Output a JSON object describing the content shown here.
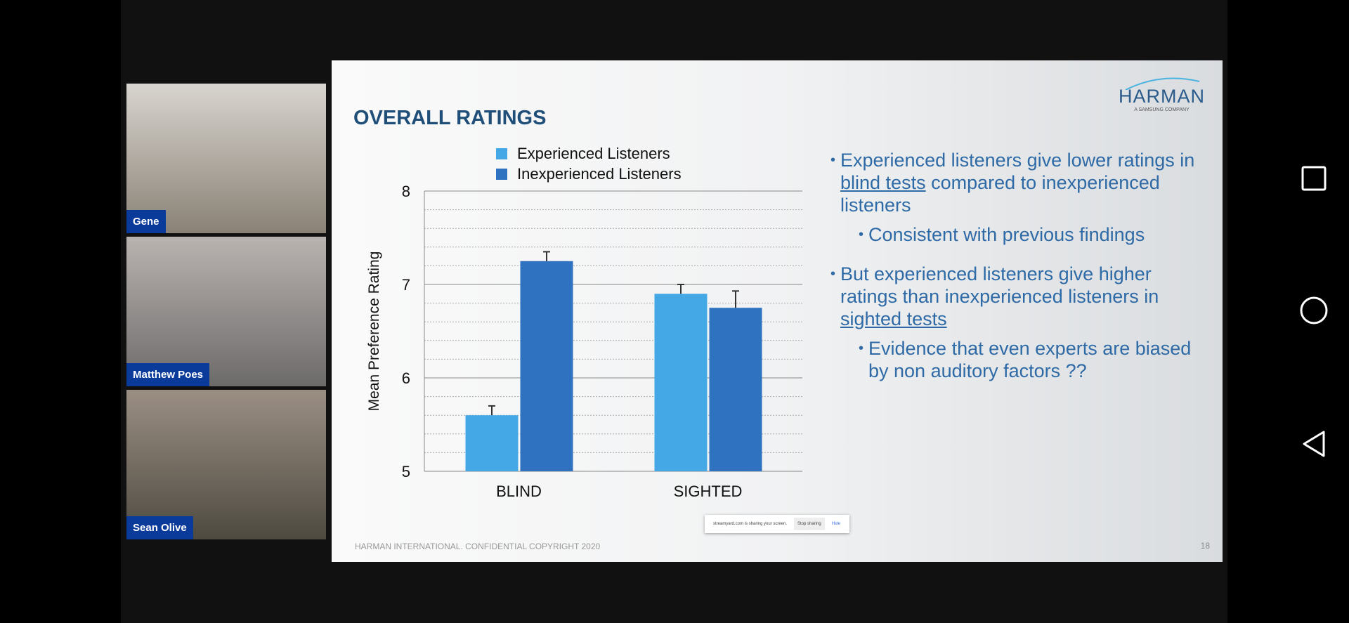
{
  "participants": [
    {
      "name": "Gene"
    },
    {
      "name": "Matthew Poes"
    },
    {
      "name": "Sean Olive"
    }
  ],
  "slide": {
    "title": "OVERALL RATINGS",
    "logo": {
      "brand": "HARMAN",
      "tagline": "A SAMSUNG COMPANY"
    },
    "bullets": [
      {
        "pre": "Experienced listeners give lower ratings in ",
        "u": "blind tests",
        "post": " compared to inexperienced listeners",
        "level": 1
      },
      {
        "pre": "Consistent with previous findings",
        "u": "",
        "post": "",
        "level": 2
      },
      {
        "pre": "But experienced listeners give higher ratings than inexperienced listeners in ",
        "u": "sighted tests",
        "post": "",
        "level": 1
      },
      {
        "pre": "Evidence that even experts are biased by non auditory factors ??",
        "u": "",
        "post": "",
        "level": 2
      }
    ],
    "footer": "HARMAN INTERNATIONAL. CONFIDENTIAL COPYRIGHT 2020",
    "page_number": "18"
  },
  "share_bar": {
    "message": "streamyard.com is sharing your screen.",
    "stop": "Stop sharing",
    "hide": "Hide"
  },
  "chart_data": {
    "type": "bar",
    "title": "",
    "ylabel": "Mean Preference Rating",
    "xlabel": "",
    "categories": [
      "BLIND",
      "SIGHTED"
    ],
    "ylim": [
      5,
      8
    ],
    "yticks": [
      "5",
      "6",
      "7",
      "8"
    ],
    "series": [
      {
        "name": "Experienced Listeners",
        "color": "#45a8e6",
        "values": [
          5.6,
          6.9
        ],
        "error_top": [
          5.7,
          7.0
        ]
      },
      {
        "name": "Inexperienced Listeners",
        "color": "#2e72c0",
        "values": [
          7.25,
          6.75
        ],
        "error_top": [
          7.35,
          6.93
        ]
      }
    ],
    "legend_position": "top"
  }
}
